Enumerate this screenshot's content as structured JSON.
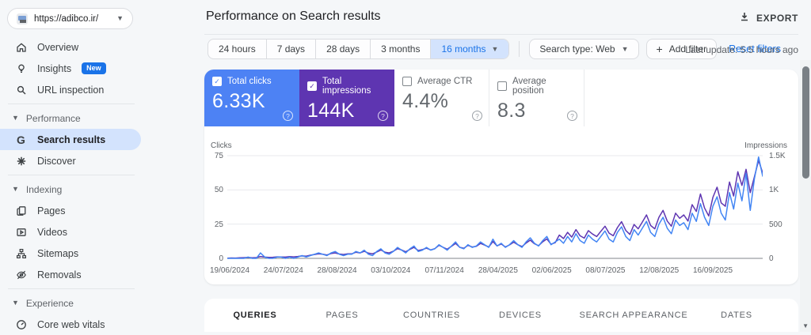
{
  "property": {
    "url": "https://adibco.ir/"
  },
  "sidebar": {
    "groups": [
      {
        "section": null,
        "items": [
          {
            "icon": "home",
            "label": "Overview"
          },
          {
            "icon": "bulb",
            "label": "Insights",
            "badge": "New"
          },
          {
            "icon": "search",
            "label": "URL inspection"
          }
        ]
      },
      {
        "section": "Performance",
        "items": [
          {
            "icon": "g",
            "label": "Search results",
            "selected": true
          },
          {
            "icon": "asterisk",
            "label": "Discover"
          }
        ]
      },
      {
        "section": "Indexing",
        "items": [
          {
            "icon": "pages",
            "label": "Pages"
          },
          {
            "icon": "video",
            "label": "Videos"
          },
          {
            "icon": "sitemap",
            "label": "Sitemaps"
          },
          {
            "icon": "eye-off",
            "label": "Removals"
          }
        ]
      },
      {
        "section": "Experience",
        "items": [
          {
            "icon": "gauge",
            "label": "Core web vitals"
          }
        ]
      }
    ]
  },
  "header": {
    "title": "Performance on Search results",
    "export_label": "EXPORT"
  },
  "filters": {
    "date_ranges": [
      "24 hours",
      "7 days",
      "28 days",
      "3 months",
      "16 months"
    ],
    "selected_range": "16 months",
    "search_type": "Search type: Web",
    "add_filter": "Add filter",
    "reset": "Reset filters",
    "last_update": "Last update: 5.5 hours ago"
  },
  "metrics": [
    {
      "label": "Total clicks",
      "value": "6.33K",
      "checked": true,
      "color": "#4d82f4"
    },
    {
      "label": "Total impressions",
      "value": "144K",
      "checked": true,
      "color": "#5e35b1"
    },
    {
      "label": "Average CTR",
      "value": "4.4%",
      "checked": false,
      "color": "#ffffff"
    },
    {
      "label": "Average position",
      "value": "8.3",
      "checked": false,
      "color": "#ffffff"
    }
  ],
  "chart_data": {
    "type": "line",
    "left_axis": {
      "label": "Clicks",
      "ticks": [
        75,
        50,
        25,
        0
      ],
      "max": 75
    },
    "right_axis": {
      "label": "Impressions",
      "ticks": [
        "1.5K",
        "1K",
        "500",
        "0"
      ],
      "max": 1500
    },
    "x_tick_labels": [
      "19/06/2024",
      "24/07/2024",
      "28/08/2024",
      "03/10/2024",
      "07/11/2024",
      "28/04/2025",
      "02/06/2025",
      "08/07/2025",
      "12/08/2025",
      "16/09/2025"
    ],
    "grid": true,
    "series": [
      {
        "name": "Total impressions",
        "color": "#5e35b1",
        "axis": "right",
        "values": [
          4,
          6,
          5,
          8,
          10,
          14,
          9,
          12,
          28,
          18,
          14,
          16,
          22,
          20,
          18,
          26,
          22,
          28,
          36,
          32,
          46,
          56,
          66,
          60,
          50,
          70,
          80,
          64,
          56,
          66,
          66,
          90,
          80,
          104,
          76,
          66,
          94,
          122,
          90,
          80,
          104,
          142,
          122,
          96,
          132,
          160,
          114,
          128,
          150,
          124,
          142,
          190,
          162,
          134,
          176,
          218,
          162,
          148,
          190,
          166,
          176,
          218,
          194,
          166,
          246,
          182,
          210,
          166,
          196,
          236,
          200,
          172,
          224,
          266,
          214,
          186,
          242,
          284,
          206,
          228,
          340,
          290,
          380,
          310,
          420,
          330,
          295,
          405,
          355,
          318,
          395,
          470,
          368,
          330,
          450,
          535,
          408,
          350,
          495,
          432,
          530,
          635,
          480,
          432,
          600,
          700,
          545,
          470,
          660,
          585,
          635,
          545,
          785,
          685,
          940,
          735,
          620,
          890,
          1040,
          810,
          760,
          1115,
          910,
          1265,
          1065,
          1300,
          960,
          1190,
          1430,
          1250
        ]
      },
      {
        "name": "Total clicks",
        "color": "#4285f4",
        "axis": "left",
        "values": [
          0,
          0,
          0,
          0,
          0,
          1,
          0,
          0,
          4,
          1,
          0,
          0,
          1,
          1,
          0,
          1,
          0,
          1,
          2,
          1,
          2,
          3,
          4,
          3,
          2,
          4,
          5,
          3,
          2,
          3,
          3,
          5,
          4,
          6,
          3,
          2,
          5,
          7,
          4,
          3,
          5,
          8,
          6,
          4,
          7,
          9,
          5,
          6,
          8,
          6,
          7,
          10,
          8,
          6,
          9,
          12,
          8,
          7,
          10,
          8,
          9,
          12,
          10,
          8,
          14,
          9,
          11,
          8,
          10,
          13,
          10,
          8,
          12,
          15,
          11,
          9,
          13,
          16,
          10,
          12,
          14,
          11,
          16,
          12,
          18,
          13,
          11,
          17,
          14,
          12,
          16,
          20,
          14,
          12,
          19,
          23,
          16,
          13,
          21,
          17,
          22,
          27,
          19,
          16,
          25,
          30,
          22,
          18,
          28,
          24,
          26,
          21,
          33,
          27,
          40,
          30,
          24,
          38,
          45,
          33,
          28,
          48,
          36,
          55,
          42,
          62,
          35,
          58,
          74,
          60
        ]
      }
    ]
  },
  "tabs": {
    "items": [
      "QUERIES",
      "PAGES",
      "COUNTRIES",
      "DEVICES",
      "SEARCH APPEARANCE",
      "DATES"
    ],
    "active": "QUERIES"
  }
}
